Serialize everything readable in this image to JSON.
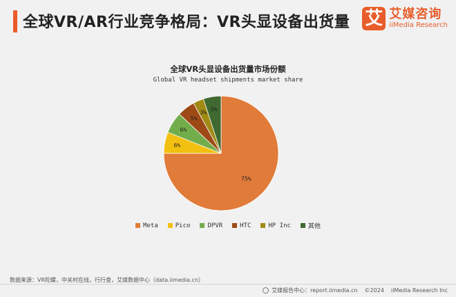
{
  "header": {
    "title": "全球VR/AR行业竞争格局：VR头显设备出货量",
    "logo_mark": "艾",
    "logo_cn": "艾媒咨询",
    "logo_en": "iiMedia Research"
  },
  "colors": {
    "accent": "#e85d2a"
  },
  "chart_data": {
    "type": "pie",
    "title": "全球VR头显设备出货量市场份额",
    "subtitle": "Global VR headset shipments market share",
    "slices": [
      {
        "label": "Meta",
        "value": 75,
        "display": "75%",
        "color": "#e07b39"
      },
      {
        "label": "Pico",
        "value": 6,
        "display": "6%",
        "color": "#f2c010"
      },
      {
        "label": "DPVR",
        "value": 6,
        "display": "6%",
        "color": "#72ad4b"
      },
      {
        "label": "HTC",
        "value": 5,
        "display": "5%",
        "color": "#9e4a17"
      },
      {
        "label": "HP Inc",
        "value": 3,
        "display": "3%",
        "color": "#a18a14"
      },
      {
        "label": "其他",
        "value": 5,
        "display": "5%",
        "color": "#3f6930"
      }
    ],
    "legend_position": "bottom"
  },
  "footer": {
    "source": "数据来源：VR陀螺，中关村在线，行行查，艾媒数据中心（data.iimedia.cn）",
    "report_center": "艾媒报告中心：report.iimedia.cn",
    "copyright": "©2024",
    "company": "iiMedia Research Inc"
  }
}
